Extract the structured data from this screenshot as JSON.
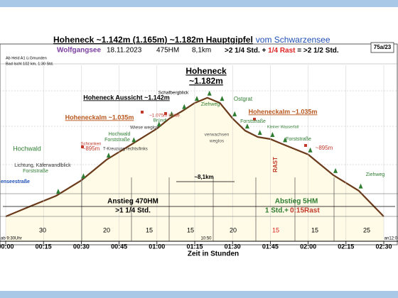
{
  "header": {
    "title_main": "Hoheneck ~1.142m (1.165m) ~1.182m  Hauptgipfel",
    "title_from": "vom Schwarzensee",
    "start": "Wolfgangsee",
    "date": "18.11.2023",
    "ascent": "475HM",
    "distance": "8,1km",
    "time": ">2 1/4 Std. + ",
    "rest": "1/4 Rast",
    "total": " = >2 1/2 Std.",
    "badge": "75a/23",
    "info": [
      "Ab Heid A1 ü.Gmunden",
      "Bad Ischl 102 km, 1:30 Std."
    ]
  },
  "chart_data": {
    "type": "area",
    "color": "#6b3a1a",
    "fill": "#fffbe6",
    "x": [
      0,
      10,
      20,
      30,
      40,
      50,
      60,
      65,
      70,
      75,
      80,
      85,
      90,
      95,
      100,
      105,
      110,
      120,
      130,
      140,
      150
    ],
    "values": [
      659,
      705,
      750,
      818,
      909,
      977,
      1046,
      1091,
      1123,
      1159,
      1182,
      1159,
      1091,
      1037,
      1009,
      1000,
      977,
      932,
      841,
      773,
      659
    ],
    "ylim": [
      550,
      1300
    ],
    "xlim": [
      0,
      150
    ],
    "xticks": [
      {
        "value": 0,
        "label": "00:00"
      },
      {
        "value": 15,
        "label": "00:15"
      },
      {
        "value": 30,
        "label": "00:30"
      },
      {
        "value": 45,
        "label": "00:45"
      },
      {
        "value": 60,
        "label": "01:00"
      },
      {
        "value": 75,
        "label": "01:15"
      },
      {
        "value": 90,
        "label": "01:30"
      },
      {
        "value": 105,
        "label": "01:45"
      },
      {
        "value": 120,
        "label": "02:00"
      },
      {
        "value": 135,
        "label": "02:15"
      },
      {
        "value": 150,
        "label": "02:30"
      }
    ],
    "grid": true,
    "xlabel": "Zeit in Stunden",
    "clock_start": "ab 9:30Uhr",
    "clock_mid": "10:50",
    "clock_end": "an12:0",
    "segment_minutes": [
      30,
      20,
      15,
      15,
      20,
      15,
      15,
      25
    ],
    "annotations": [
      "Hoheneck",
      "~1.182m",
      "Hoheneck  Aussicht ~1.142m",
      "Schafbergblick",
      "Hoheneckalm ~1.035m",
      "Hoheneckalm ~1.035m",
      "~1.075m Hütte",
      "Wiese weglos",
      "Bründl",
      "Ostgrat",
      "Ziehweg",
      "Forststraße",
      "Kleiner Wasserfall",
      "Forststraße",
      "~895m",
      "Ziehweg",
      "Hochwald",
      "Forststraße",
      "Schranken",
      "~895m",
      "T-Kreuzung rechts/links",
      "Hochwald",
      "Lichtung, Käferwandlblick",
      "Forststraße",
      "enseestraße",
      "verwachsen",
      "weglos",
      "~8,1km",
      "RAST",
      "Anstieg 470HM",
      ">1 1/4 Std.",
      "Abstieg 5HM",
      "1 Std.+",
      "0:15Rast"
    ]
  }
}
